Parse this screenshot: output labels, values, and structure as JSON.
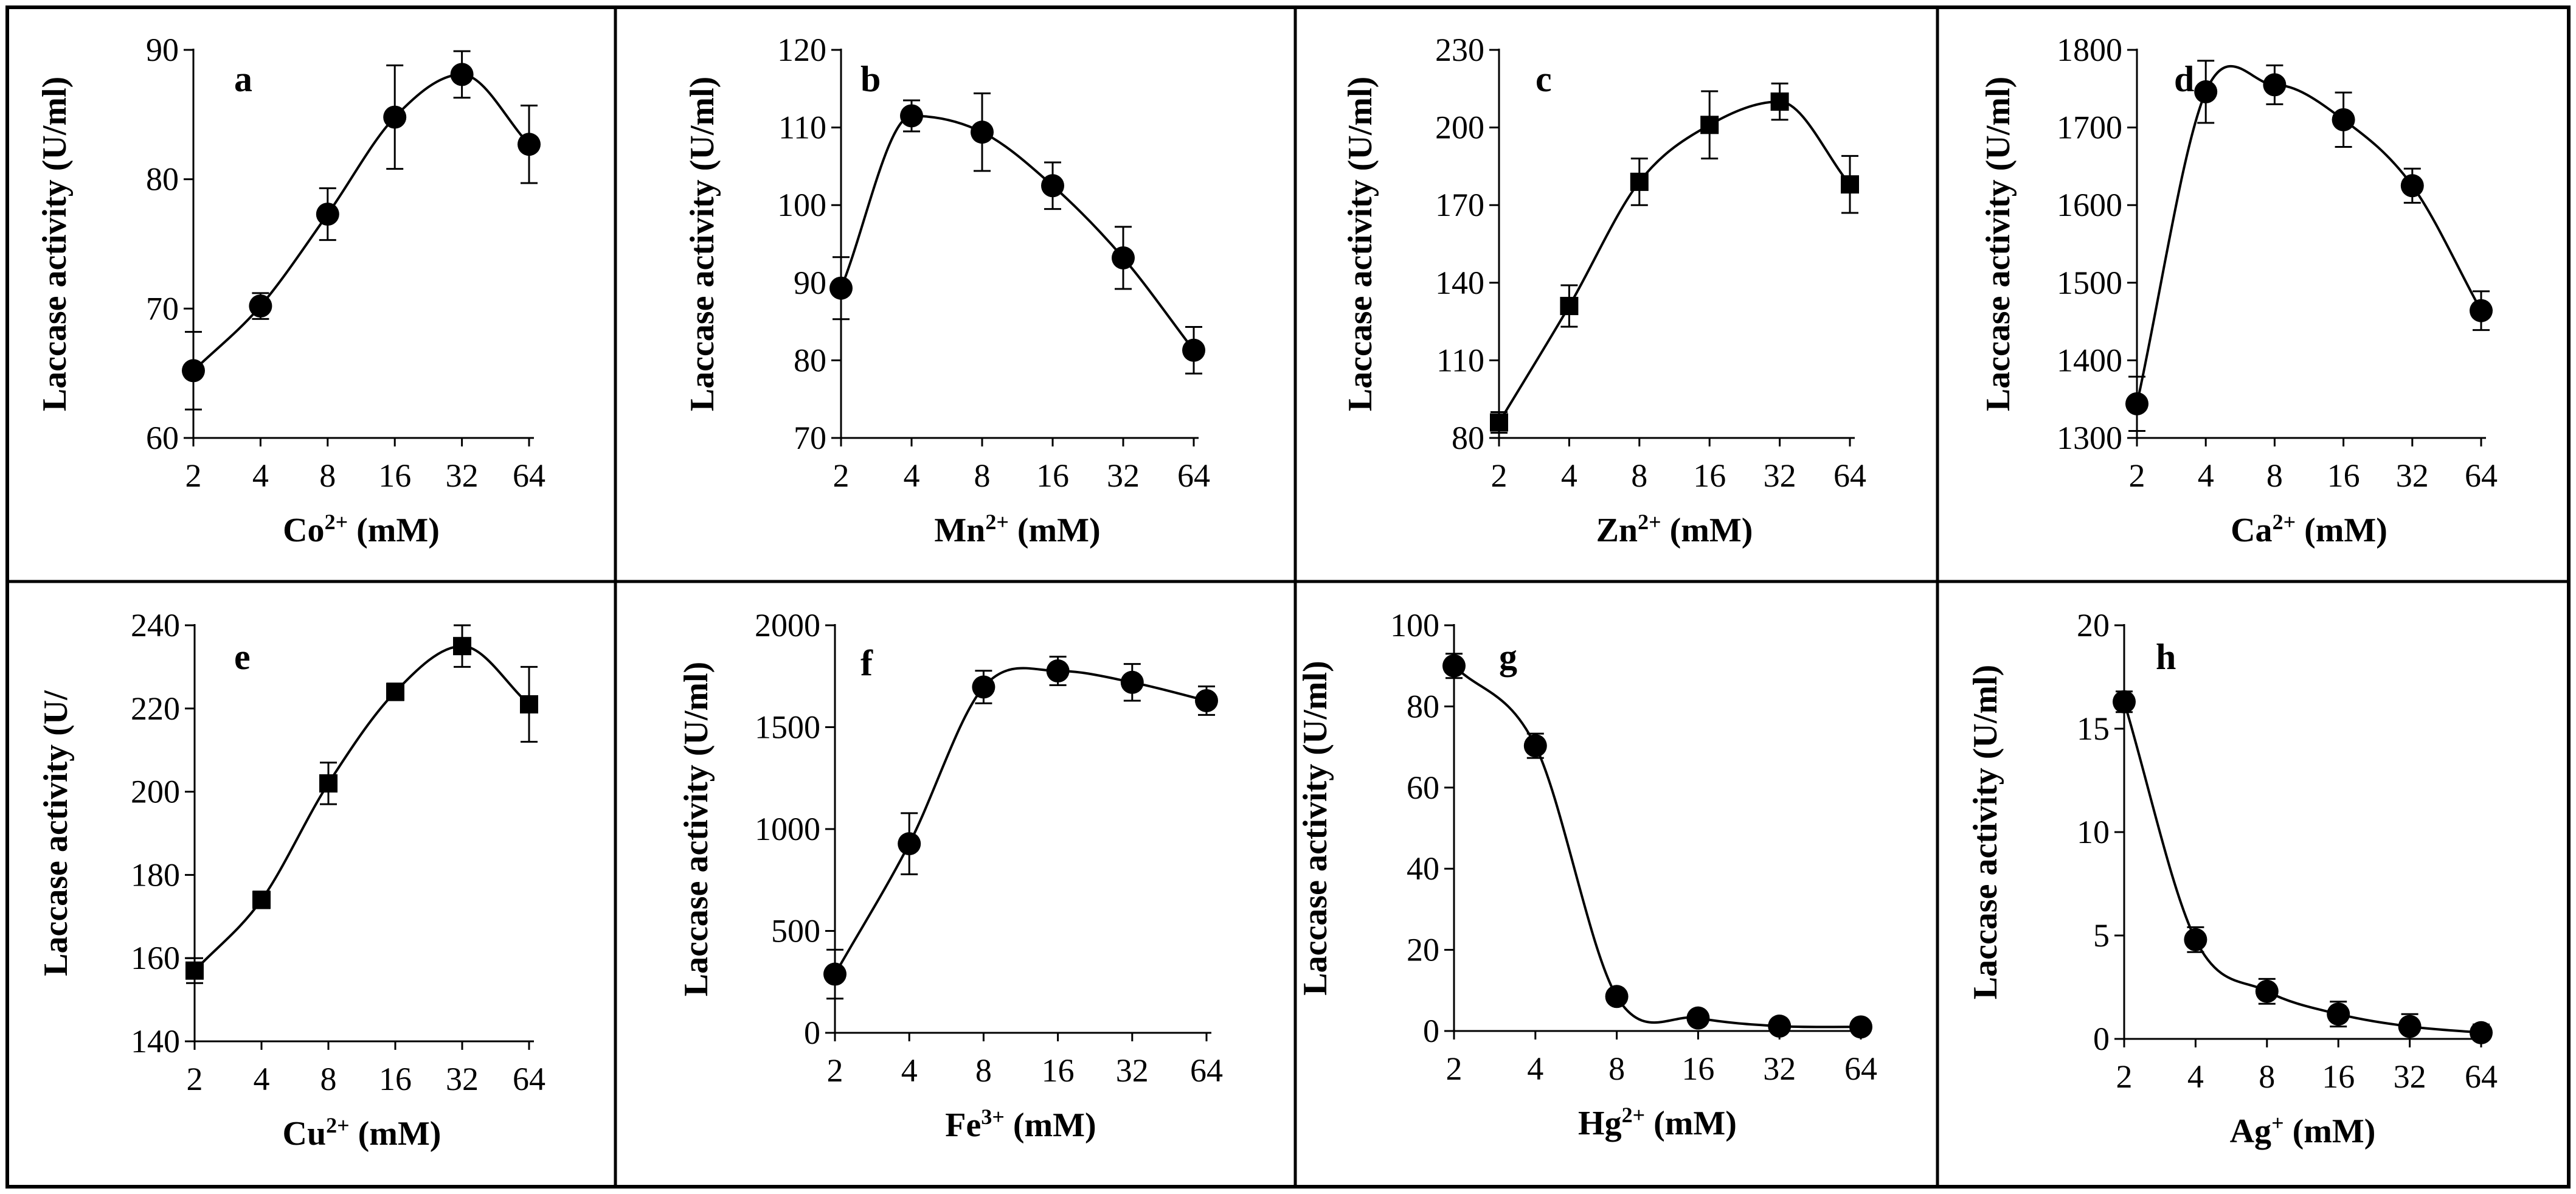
{
  "chart_data": [
    {
      "panel": "a",
      "type": "line",
      "xlabel_base": "Co",
      "xlabel_sup": "2+",
      "xlabel_unit": " (mM)",
      "ylabel": "Laccase activity (U/ml)",
      "x": [
        2,
        4,
        8,
        16,
        32,
        64
      ],
      "values": [
        65.2,
        70.2,
        77.3,
        84.8,
        88.1,
        82.7
      ],
      "errors": [
        3.0,
        1.0,
        2.0,
        4.0,
        1.8,
        3.0
      ],
      "ylim": [
        60,
        90
      ],
      "yticks": [
        60,
        70,
        80,
        90
      ],
      "marker": "circle"
    },
    {
      "panel": "b",
      "type": "line",
      "xlabel_base": "Mn",
      "xlabel_sup": "2+",
      "xlabel_unit": " (mM)",
      "ylabel": "Laccase activity (U/ml)",
      "x": [
        2,
        4,
        8,
        16,
        32,
        64
      ],
      "values": [
        89.3,
        111.5,
        109.4,
        102.5,
        93.2,
        81.3
      ],
      "errors": [
        4.0,
        2.0,
        5.0,
        3.0,
        4.0,
        3.0
      ],
      "ylim": [
        70,
        120
      ],
      "yticks": [
        70,
        80,
        90,
        100,
        110,
        120
      ],
      "marker": "circle"
    },
    {
      "panel": "c",
      "type": "line",
      "xlabel_base": "Zn",
      "xlabel_sup": "2+",
      "xlabel_unit": " (mM)",
      "ylabel": "Laccase activity (U/ml)",
      "x": [
        2,
        4,
        8,
        16,
        32,
        64
      ],
      "values": [
        86,
        131,
        179,
        201,
        210,
        178
      ],
      "errors": [
        4,
        8,
        9,
        13,
        7,
        11
      ],
      "ylim": [
        80,
        230
      ],
      "yticks": [
        80,
        110,
        140,
        170,
        200,
        230
      ],
      "marker": "square"
    },
    {
      "panel": "d",
      "type": "line",
      "xlabel_base": "Ca",
      "xlabel_sup": "2+",
      "xlabel_unit": " (mM)",
      "ylabel": "Laccase activity (U/ml)",
      "x": [
        2,
        4,
        8,
        16,
        32,
        64
      ],
      "values": [
        1344,
        1746,
        1755,
        1710,
        1625,
        1464
      ],
      "errors": [
        35,
        40,
        25,
        35,
        22,
        25
      ],
      "ylim": [
        1300,
        1800
      ],
      "yticks": [
        1300,
        1400,
        1500,
        1600,
        1700,
        1800
      ],
      "marker": "circle"
    },
    {
      "panel": "e",
      "type": "line",
      "xlabel_base": "Cu",
      "xlabel_sup": "2+",
      "xlabel_unit": " (mM)",
      "ylabel": "Laccase activity (U/",
      "x": [
        2,
        4,
        8,
        16,
        32,
        64
      ],
      "values": [
        157,
        174,
        202,
        224,
        235,
        221
      ],
      "errors": [
        3,
        2,
        5,
        2,
        5,
        9
      ],
      "ylim": [
        140,
        240
      ],
      "yticks": [
        140,
        160,
        180,
        200,
        220,
        240
      ],
      "marker": "square"
    },
    {
      "panel": "f",
      "type": "line",
      "xlabel_base": "Fe",
      "xlabel_sup": "3+",
      "xlabel_unit": " (mM)",
      "ylabel": "Laccase activity (U/ml)",
      "x": [
        2,
        4,
        8,
        16,
        32,
        64
      ],
      "values": [
        288,
        928,
        1697,
        1776,
        1720,
        1630
      ],
      "errors": [
        120,
        150,
        80,
        70,
        90,
        70
      ],
      "ylim": [
        0,
        2000
      ],
      "yticks": [
        0,
        500,
        1000,
        1500,
        2000
      ],
      "marker": "circle"
    },
    {
      "panel": "g",
      "type": "line",
      "xlabel_base": "Hg",
      "xlabel_sup": "2+",
      "xlabel_unit": " (mM)",
      "ylabel": "Laccase activity (U/ml)",
      "x": [
        2,
        4,
        8,
        16,
        32,
        64
      ],
      "values": [
        90,
        70.3,
        8.5,
        3.2,
        1.2,
        1.0
      ],
      "errors": [
        3,
        3,
        1.5,
        1,
        1,
        1
      ],
      "ylim": [
        0,
        100
      ],
      "yticks": [
        0,
        20,
        40,
        60,
        80,
        100
      ],
      "marker": "circle"
    },
    {
      "panel": "h",
      "type": "line",
      "xlabel_base": "Ag",
      "xlabel_sup": "+",
      "xlabel_unit": " (mM)",
      "ylabel": "Laccase activity (U/ml)",
      "x": [
        2,
        4,
        8,
        16,
        32,
        64
      ],
      "values": [
        16.3,
        4.8,
        2.3,
        1.2,
        0.6,
        0.3
      ],
      "errors": [
        0.5,
        0.6,
        0.6,
        0.6,
        0.6,
        0.4
      ],
      "ylim": [
        0,
        20
      ],
      "yticks": [
        0,
        5,
        10,
        15,
        20
      ],
      "marker": "circle"
    }
  ]
}
